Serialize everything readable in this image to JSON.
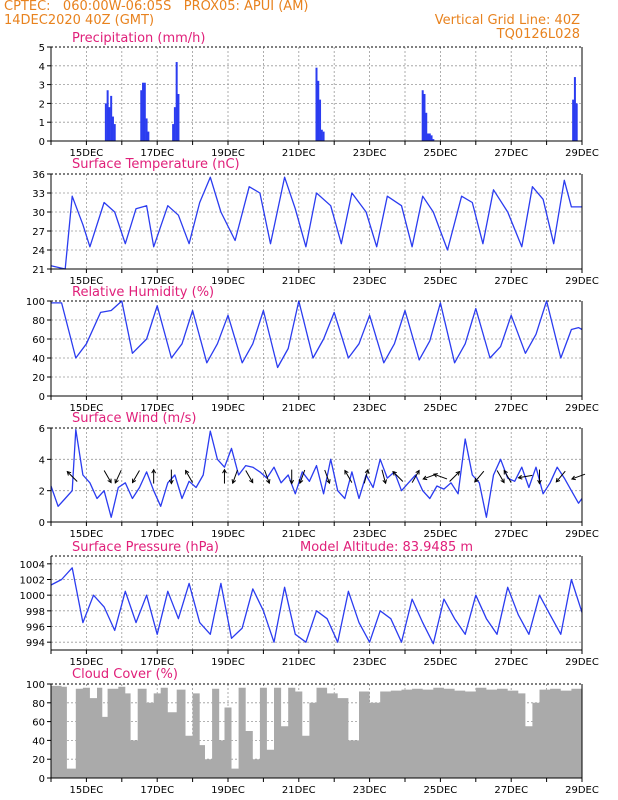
{
  "header": {
    "line1": "CPTEC:   060:00W-06:05S   PROX05: APUI (AM)",
    "line2": "14DEC2020 40Z (GMT)",
    "right1": "Vertical Grid Line: 40Z",
    "right2": "TQ0126L028"
  },
  "colors": {
    "header": "#e8821e",
    "title": "#e0207a",
    "line": "#2b3cf0",
    "cloud": "#aaaaaa",
    "grid": "#999999"
  },
  "x_ticks": [
    "15DEC",
    "17DEC",
    "19DEC",
    "21DEC",
    "23DEC",
    "25DEC",
    "27DEC",
    "29DEC"
  ],
  "chart_data": [
    {
      "type": "bar",
      "title": "Precipitation (mm/h)",
      "ylim": [
        0,
        5
      ],
      "yticks": [
        "0",
        "1",
        "2",
        "3",
        "4",
        "5"
      ],
      "x_range": [
        "14.0 DEC",
        "29.0 DEC"
      ],
      "series": [
        {
          "x": [
            15.55,
            15.6,
            15.65,
            15.7,
            15.75,
            15.8,
            16.55,
            16.6,
            16.65,
            16.7,
            16.75,
            17.45,
            17.5,
            17.55,
            17.6,
            21.5,
            21.55,
            21.6,
            21.65,
            21.7,
            24.5,
            24.55,
            24.6,
            24.65,
            24.7,
            24.75,
            24.8,
            28.75,
            28.8,
            28.85
          ],
          "values": [
            2.0,
            2.7,
            1.8,
            2.4,
            1.3,
            0.9,
            2.7,
            3.1,
            3.1,
            1.2,
            0.5,
            0.9,
            1.8,
            4.2,
            2.5,
            3.9,
            3.2,
            2.2,
            0.6,
            0.5,
            2.7,
            2.5,
            1.5,
            0.4,
            0.4,
            0.3,
            0.1,
            2.2,
            3.4,
            2.0
          ]
        }
      ]
    },
    {
      "type": "line",
      "title": "Surface Temperature (nC)",
      "ylim": [
        21,
        36
      ],
      "yticks": [
        "21",
        "24",
        "27",
        "30",
        "33",
        "36"
      ],
      "series": [
        {
          "x": [
            14.0,
            14.4,
            14.6,
            14.9,
            15.1,
            15.5,
            15.8,
            16.1,
            16.4,
            16.7,
            16.9,
            17.3,
            17.6,
            17.9,
            18.2,
            18.5,
            18.8,
            19.2,
            19.6,
            19.9,
            20.2,
            20.6,
            20.9,
            21.2,
            21.5,
            21.9,
            22.2,
            22.5,
            22.9,
            23.2,
            23.5,
            23.9,
            24.2,
            24.5,
            24.8,
            25.2,
            25.6,
            25.9,
            26.2,
            26.5,
            26.9,
            27.3,
            27.6,
            27.9,
            28.2,
            28.5,
            28.7,
            29.0
          ],
          "values": [
            21.5,
            21,
            32.5,
            28,
            24.5,
            31.5,
            30,
            25,
            30.5,
            31,
            24.5,
            31,
            29.5,
            25,
            31.5,
            35.5,
            30,
            25.5,
            34,
            33,
            25,
            35.5,
            30.5,
            24.5,
            33,
            31,
            25,
            33,
            30,
            24.5,
            32.5,
            31,
            24.5,
            32.5,
            30,
            24,
            32.5,
            31.5,
            25,
            33.5,
            30,
            24.5,
            34,
            32,
            25,
            35,
            30.8,
            30.8
          ]
        }
      ]
    },
    {
      "type": "line",
      "title": "Relative Humidity (%)",
      "ylim": [
        0,
        100
      ],
      "yticks": [
        "0",
        "20",
        "40",
        "60",
        "80",
        "100"
      ],
      "series": [
        {
          "x": [
            14.0,
            14.3,
            14.7,
            15.0,
            15.4,
            15.7,
            16.0,
            16.3,
            16.7,
            17.0,
            17.4,
            17.7,
            18.0,
            18.4,
            18.7,
            19.0,
            19.4,
            19.7,
            20.0,
            20.4,
            20.7,
            21.0,
            21.4,
            21.7,
            22.0,
            22.4,
            22.7,
            23.0,
            23.4,
            23.7,
            24.0,
            24.4,
            24.7,
            25.0,
            25.4,
            25.7,
            26.0,
            26.4,
            26.7,
            27.0,
            27.4,
            27.7,
            28.0,
            28.4,
            28.7,
            28.9,
            29.0
          ],
          "values": [
            98,
            98,
            40,
            55,
            88,
            90,
            100,
            45,
            60,
            95,
            40,
            55,
            90,
            35,
            55,
            85,
            35,
            55,
            90,
            30,
            50,
            100,
            40,
            60,
            88,
            40,
            55,
            85,
            35,
            55,
            90,
            38,
            58,
            98,
            35,
            55,
            92,
            40,
            52,
            85,
            45,
            65,
            100,
            40,
            70,
            72,
            70
          ]
        }
      ]
    },
    {
      "type": "line",
      "title": "Surface Wind (m/s)",
      "ylim": [
        0,
        6
      ],
      "yticks": [
        "0",
        "2",
        "4",
        "6"
      ],
      "series": [
        {
          "x": [
            14.0,
            14.2,
            14.4,
            14.6,
            14.7,
            14.9,
            15.1,
            15.3,
            15.5,
            15.7,
            15.9,
            16.1,
            16.3,
            16.5,
            16.7,
            16.9,
            17.1,
            17.3,
            17.5,
            17.7,
            17.9,
            18.1,
            18.3,
            18.5,
            18.7,
            18.9,
            19.1,
            19.3,
            19.5,
            19.7,
            19.9,
            20.1,
            20.3,
            20.5,
            20.7,
            20.9,
            21.1,
            21.3,
            21.5,
            21.7,
            21.9,
            22.1,
            22.3,
            22.5,
            22.7,
            22.9,
            23.1,
            23.3,
            23.5,
            23.7,
            23.9,
            24.1,
            24.3,
            24.5,
            24.7,
            24.9,
            25.1,
            25.3,
            25.5,
            25.7,
            25.9,
            26.1,
            26.3,
            26.5,
            26.7,
            26.9,
            27.1,
            27.3,
            27.5,
            27.7,
            27.9,
            28.1,
            28.3,
            28.5,
            28.7,
            28.9,
            29.0
          ],
          "values": [
            2.3,
            1.0,
            1.5,
            2.0,
            5.9,
            3.0,
            2.5,
            1.5,
            2.0,
            0.3,
            2.2,
            2.5,
            1.5,
            2.2,
            3.2,
            2.0,
            1.0,
            2.5,
            3.0,
            1.5,
            2.6,
            2.2,
            3.0,
            5.8,
            4.0,
            3.5,
            4.7,
            3.0,
            3.6,
            3.5,
            3.2,
            2.8,
            3.5,
            2.5,
            3.0,
            1.8,
            3.2,
            2.6,
            3.6,
            1.8,
            4.0,
            2.0,
            1.5,
            3.2,
            1.5,
            3.0,
            2.2,
            4.0,
            2.8,
            3.2,
            2.0,
            2.5,
            3.0,
            2.0,
            1.5,
            2.3,
            2.1,
            2.5,
            1.8,
            5.3,
            3.0,
            2.5,
            0.3,
            3.0,
            4.0,
            2.8,
            2.6,
            3.5,
            2.2,
            3.5,
            1.8,
            2.5,
            3.5,
            2.8,
            2.0,
            1.2,
            1.5
          ]
        }
      ],
      "arrows": [
        {
          "x": 14.6,
          "dir": 135
        },
        {
          "x": 15.6,
          "dir": 300
        },
        {
          "x": 15.9,
          "dir": 245
        },
        {
          "x": 16.4,
          "dir": 240
        },
        {
          "x": 16.9,
          "dir": 90
        },
        {
          "x": 17.4,
          "dir": 270
        },
        {
          "x": 17.9,
          "dir": 120
        },
        {
          "x": 18.9,
          "dir": 90
        },
        {
          "x": 19.2,
          "dir": 250
        },
        {
          "x": 19.6,
          "dir": 300
        },
        {
          "x": 20.1,
          "dir": 290
        },
        {
          "x": 20.8,
          "dir": 270
        },
        {
          "x": 21.1,
          "dir": 250
        },
        {
          "x": 21.8,
          "dir": 290
        },
        {
          "x": 22.4,
          "dir": 120
        },
        {
          "x": 22.9,
          "dir": 75
        },
        {
          "x": 23.4,
          "dir": 285
        },
        {
          "x": 23.8,
          "dir": 135
        },
        {
          "x": 24.3,
          "dir": 60
        },
        {
          "x": 24.7,
          "dir": 200
        },
        {
          "x": 25.0,
          "dir": 160
        },
        {
          "x": 25.4,
          "dir": 45
        },
        {
          "x": 26.1,
          "dir": 230
        },
        {
          "x": 26.7,
          "dir": 300
        },
        {
          "x": 26.9,
          "dir": 120
        },
        {
          "x": 27.4,
          "dir": 190
        },
        {
          "x": 27.8,
          "dir": 270
        },
        {
          "x": 28.4,
          "dir": 230
        },
        {
          "x": 28.9,
          "dir": 200
        }
      ]
    },
    {
      "type": "line",
      "title": "Surface Pressure (hPa)",
      "annotation": "Model Altitude: 83.9485 m",
      "ylim": [
        993,
        1005
      ],
      "yticks": [
        "994",
        "996",
        "998",
        "1000",
        "1002",
        "1004"
      ],
      "series": [
        {
          "x": [
            14.0,
            14.3,
            14.6,
            14.9,
            15.2,
            15.5,
            15.8,
            16.1,
            16.4,
            16.7,
            17.0,
            17.3,
            17.6,
            17.9,
            18.2,
            18.5,
            18.8,
            19.1,
            19.4,
            19.7,
            20.0,
            20.3,
            20.6,
            20.9,
            21.2,
            21.5,
            21.8,
            22.1,
            22.4,
            22.7,
            23.0,
            23.3,
            23.6,
            23.9,
            24.2,
            24.5,
            24.8,
            25.1,
            25.4,
            25.7,
            26.0,
            26.3,
            26.6,
            26.9,
            27.2,
            27.5,
            27.8,
            28.1,
            28.4,
            28.7,
            29.0
          ],
          "values": [
            1001.3,
            1002.0,
            1003.5,
            996.5,
            1000.0,
            998.5,
            995.5,
            1000.5,
            996.5,
            1000.0,
            995.0,
            1000.5,
            997.0,
            1001.5,
            996.5,
            995.0,
            1001.5,
            994.5,
            995.8,
            1000.8,
            998.0,
            994.0,
            1001.0,
            995.0,
            994.0,
            998.0,
            997.0,
            994.0,
            1000.5,
            996.5,
            994.0,
            998.0,
            997.0,
            994.0,
            999.5,
            996.5,
            993.8,
            999.5,
            997.0,
            995.0,
            1000.0,
            997.0,
            995.0,
            1001.0,
            997.5,
            995.0,
            1000.0,
            997.5,
            995.0,
            1002.0,
            997.8
          ]
        }
      ]
    },
    {
      "type": "area",
      "title": "Cloud Cover (%)",
      "ylim": [
        0,
        100
      ],
      "yticks": [
        "0",
        "20",
        "40",
        "60",
        "80",
        "100"
      ],
      "series": [
        {
          "x": [
            14.0,
            14.3,
            14.45,
            14.7,
            14.9,
            15.1,
            15.3,
            15.45,
            15.6,
            15.9,
            16.1,
            16.25,
            16.45,
            16.7,
            16.9,
            17.1,
            17.3,
            17.55,
            17.8,
            18.0,
            18.2,
            18.35,
            18.55,
            18.75,
            18.9,
            19.1,
            19.3,
            19.5,
            19.7,
            19.9,
            20.1,
            20.3,
            20.5,
            20.7,
            20.9,
            21.1,
            21.3,
            21.5,
            21.8,
            22.1,
            22.4,
            22.7,
            23.0,
            23.3,
            23.6,
            23.9,
            24.2,
            24.5,
            24.8,
            25.1,
            25.4,
            25.7,
            26.0,
            26.3,
            26.6,
            26.9,
            27.2,
            27.4,
            27.6,
            27.8,
            28.1,
            28.4,
            28.7,
            29.0
          ],
          "values": [
            98,
            97,
            10,
            95,
            96,
            85,
            96,
            65,
            95,
            97,
            90,
            40,
            95,
            80,
            90,
            96,
            70,
            94,
            45,
            90,
            35,
            20,
            95,
            40,
            75,
            10,
            96,
            50,
            20,
            96,
            30,
            96,
            55,
            96,
            92,
            45,
            80,
            96,
            90,
            85,
            40,
            92,
            80,
            92,
            93,
            94,
            95,
            94,
            96,
            95,
            93,
            92,
            96,
            94,
            95,
            93,
            90,
            55,
            80,
            94,
            95,
            93,
            95,
            95
          ]
        }
      ]
    }
  ]
}
